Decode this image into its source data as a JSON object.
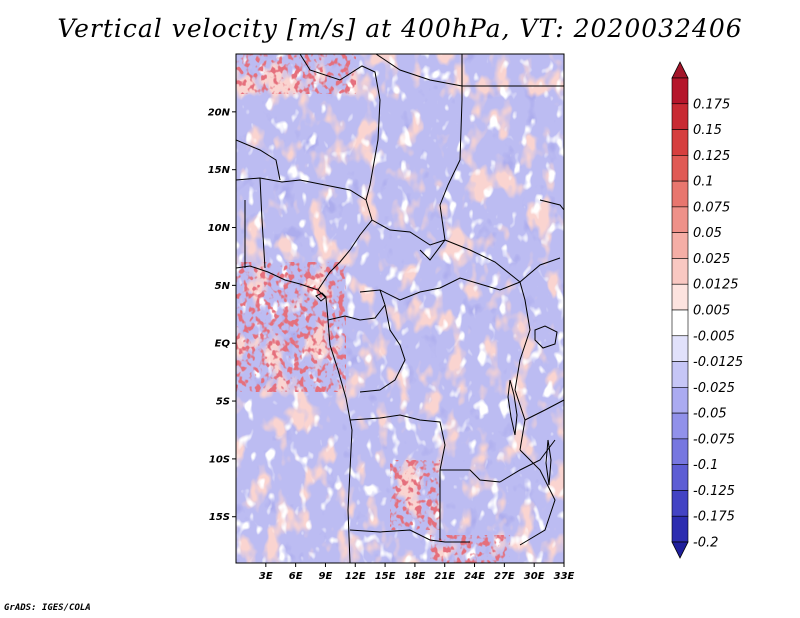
{
  "title": "Vertical velocity [m/s] at 400hPa, VT: 2020032406",
  "credit": "GrADS: IGES/COLA",
  "map": {
    "lon_range": [
      0,
      33
    ],
    "lat_range": [
      -19,
      25
    ],
    "lat_ticks": [
      {
        "value": 20,
        "label": "20N"
      },
      {
        "value": 15,
        "label": "15N"
      },
      {
        "value": 10,
        "label": "10N"
      },
      {
        "value": 5,
        "label": "5N"
      },
      {
        "value": 0,
        "label": "EQ"
      },
      {
        "value": -5,
        "label": "5S"
      },
      {
        "value": -10,
        "label": "10S"
      },
      {
        "value": -15,
        "label": "15S"
      }
    ],
    "lon_ticks": [
      {
        "value": 3,
        "label": "3E"
      },
      {
        "value": 6,
        "label": "6E"
      },
      {
        "value": 9,
        "label": "9E"
      },
      {
        "value": 12,
        "label": "12E"
      },
      {
        "value": 15,
        "label": "15E"
      },
      {
        "value": 18,
        "label": "18E"
      },
      {
        "value": 21,
        "label": "21E"
      },
      {
        "value": 24,
        "label": "24E"
      },
      {
        "value": 27,
        "label": "27E"
      },
      {
        "value": 30,
        "label": "30E"
      },
      {
        "value": 33,
        "label": "33E"
      }
    ]
  },
  "colorbar": {
    "levels": [
      {
        "label": "0.175",
        "color": "#b5162b"
      },
      {
        "label": "0.15",
        "color": "#c82a33"
      },
      {
        "label": "0.125",
        "color": "#d63f3f"
      },
      {
        "label": "0.1",
        "color": "#e05a55"
      },
      {
        "label": "0.075",
        "color": "#e8766e"
      },
      {
        "label": "0.05",
        "color": "#ef9189"
      },
      {
        "label": "0.025",
        "color": "#f5aea6"
      },
      {
        "label": "0.0125",
        "color": "#f9c8c2"
      },
      {
        "label": "0.005",
        "color": "#fde3df"
      },
      {
        "label": "-0.005",
        "color": "#ffffff"
      },
      {
        "label": "-0.0125",
        "color": "#e1e1fb"
      },
      {
        "label": "-0.025",
        "color": "#c6c6f6"
      },
      {
        "label": "-0.05",
        "color": "#ababf1"
      },
      {
        "label": "-0.075",
        "color": "#9191ea"
      },
      {
        "label": "-0.1",
        "color": "#7777e0"
      },
      {
        "label": "-0.125",
        "color": "#5d5dd4"
      },
      {
        "label": "-0.175",
        "color": "#4343c4"
      },
      {
        "label": "-0.2",
        "color": "#2c2cb0"
      }
    ],
    "top_color": "#a3162a",
    "bottom_color": "#1f1f9c"
  },
  "colors": {
    "background_field": "#bcbcf2",
    "red_patch": "#f4a8a0",
    "deep_red": "#c82a33",
    "white_patch": "#ffffff",
    "deep_blue": "#6a6ad8",
    "border": "#000000"
  }
}
